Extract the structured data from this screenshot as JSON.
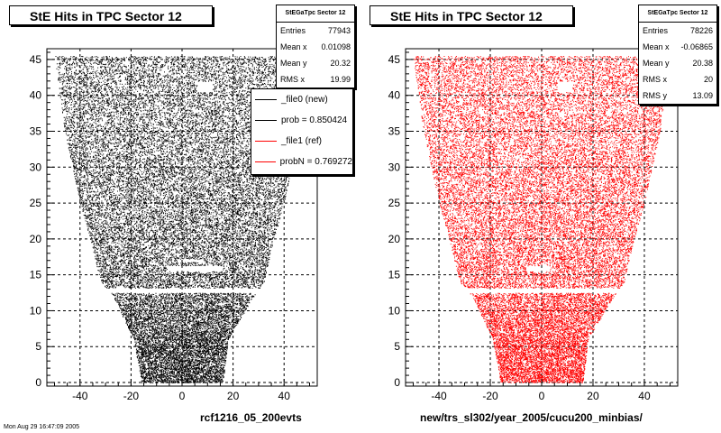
{
  "datestamp": "Mon Aug 29 16:47:09 2005",
  "chart_data": [
    {
      "type": "scatter",
      "title": "StE Hits in TPC Sector 12",
      "xlabel": "rcf1216_05_200evts",
      "ylabel": "",
      "xlim": [
        -53,
        53
      ],
      "ylim": [
        -0.5,
        46.5
      ],
      "xticks": [
        -40,
        -20,
        0,
        20,
        40
      ],
      "yticks": [
        0,
        5,
        10,
        15,
        20,
        25,
        30,
        35,
        40,
        45
      ],
      "grid": true,
      "color": "#000000",
      "stats": {
        "name": "StEGaTpc Sector 12",
        "rows": [
          {
            "label": "Entries",
            "value": "77943"
          },
          {
            "label": "Mean x",
            "value": "0.01098"
          },
          {
            "label": "Mean y",
            "value": "20.32"
          },
          {
            "label": "RMS x",
            "value": "19.99"
          }
        ]
      },
      "legend": {
        "position": "top-right",
        "entries": [
          {
            "label": "_file0 (new)",
            "color": "#000000"
          },
          {
            "label": "prob = 0.850424",
            "color": "#000000"
          },
          {
            "label": "_file1 (ref)",
            "color": "#ff0000"
          },
          {
            "label": "probN = 0.769272",
            "color": "#ff0000"
          }
        ]
      },
      "envelope": [
        {
          "y": 0,
          "xmin": -16,
          "xmax": 16
        },
        {
          "y": 6,
          "xmin": -19,
          "xmax": 18
        },
        {
          "y": 12,
          "xmin": -27,
          "xmax": 28
        },
        {
          "y": 14,
          "xmin": -32,
          "xmax": 32
        },
        {
          "y": 20,
          "xmin": -36,
          "xmax": 36
        },
        {
          "y": 25,
          "xmin": -40,
          "xmax": 40
        },
        {
          "y": 30,
          "xmin": -43,
          "xmax": 43
        },
        {
          "y": 35,
          "xmin": -46,
          "xmax": 46
        },
        {
          "y": 40,
          "xmin": -48,
          "xmax": 48
        },
        {
          "y": 45.5,
          "xmin": -50,
          "xmax": 50
        }
      ],
      "gaps": [
        {
          "y0": 12.5,
          "y1": 13.2,
          "x0": -60,
          "x1": 60
        },
        {
          "y0": 15.5,
          "y1": 16.3,
          "x0": -6,
          "x1": 16
        },
        {
          "y0": 16.8,
          "y1": 17.2,
          "x0": -2,
          "x1": 8
        },
        {
          "y0": 40.5,
          "y1": 42,
          "x0": 6,
          "x1": 12
        }
      ]
    },
    {
      "type": "scatter",
      "title": "StE Hits in TPC Sector 12",
      "xlabel": "new/trs_sl302/year_2005/cucu200_minbias/",
      "ylabel": "",
      "xlim": [
        -53,
        53
      ],
      "ylim": [
        -0.5,
        46.5
      ],
      "xticks": [
        -40,
        -20,
        0,
        20,
        40
      ],
      "yticks": [
        0,
        5,
        10,
        15,
        20,
        25,
        30,
        35,
        40,
        45
      ],
      "grid": true,
      "color": "#ff0000",
      "stats": {
        "name": "StEGaTpc Sector 12",
        "rows": [
          {
            "label": "Entries",
            "value": "78226"
          },
          {
            "label": "Mean x",
            "value": "-0.06865"
          },
          {
            "label": "Mean y",
            "value": "20.38"
          },
          {
            "label": "RMS x",
            "value": "20"
          },
          {
            "label": "RMS y",
            "value": "13.09"
          }
        ]
      },
      "envelope": [
        {
          "y": 0,
          "xmin": -16,
          "xmax": 16
        },
        {
          "y": 6,
          "xmin": -19,
          "xmax": 18
        },
        {
          "y": 12,
          "xmin": -27,
          "xmax": 28
        },
        {
          "y": 14,
          "xmin": -32,
          "xmax": 32
        },
        {
          "y": 20,
          "xmin": -36,
          "xmax": 36
        },
        {
          "y": 25,
          "xmin": -40,
          "xmax": 40
        },
        {
          "y": 30,
          "xmin": -43,
          "xmax": 43
        },
        {
          "y": 35,
          "xmin": -46,
          "xmax": 46
        },
        {
          "y": 40,
          "xmin": -48,
          "xmax": 48
        },
        {
          "y": 45.5,
          "xmin": -50,
          "xmax": 50
        }
      ],
      "gaps": [
        {
          "y0": 12.5,
          "y1": 13.2,
          "x0": -60,
          "x1": 60
        },
        {
          "y0": 15.5,
          "y1": 16.3,
          "x0": -6,
          "x1": 3
        },
        {
          "y0": 40.5,
          "y1": 42,
          "x0": 6,
          "x1": 12
        }
      ]
    }
  ]
}
